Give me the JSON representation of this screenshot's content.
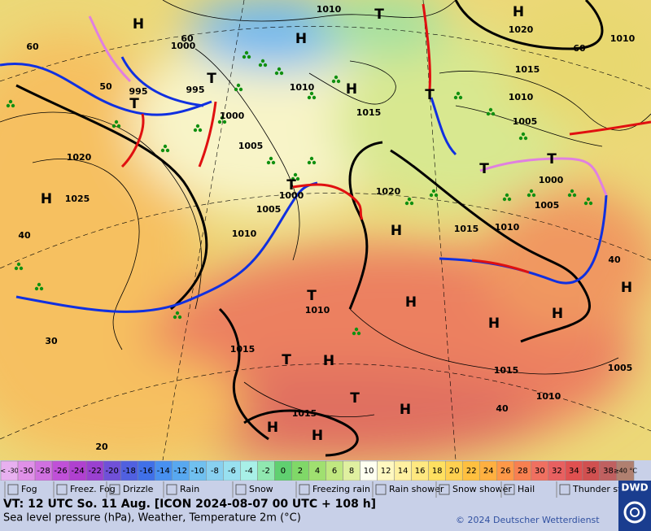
{
  "map": {
    "pressure_labels": [
      "1010",
      "1020",
      "1010",
      "1000",
      "60",
      "60",
      "60",
      "1015",
      "995",
      "995",
      "1010",
      "1015",
      "1010",
      "1000",
      "1005",
      "1005",
      "1020",
      "1025",
      "1000",
      "1020",
      "1000",
      "1005",
      "1005",
      "1015",
      "1010",
      "1010",
      "40",
      "40",
      "1010",
      "30",
      "1015",
      "1015",
      "1005",
      "1010",
      "1015",
      "40",
      "20",
      "50"
    ],
    "systems": [
      "H",
      "H",
      "H",
      "T",
      "H",
      "T",
      "T",
      "T",
      "T",
      "T",
      "T",
      "H",
      "H",
      "H",
      "T",
      "H",
      "H",
      "H",
      "T",
      "H",
      "T",
      "H",
      "H",
      "H"
    ]
  },
  "temperature_scale": [
    "< -30",
    "-30",
    "-28",
    "-26",
    "-24",
    "-22",
    "-20",
    "-18",
    "-16",
    "-14",
    "-12",
    "-10",
    "-8",
    "-6",
    "-4",
    "-2",
    "0",
    "2",
    "4",
    "6",
    "8",
    "10",
    "12",
    "14",
    "16",
    "18",
    "20",
    "22",
    "24",
    "26",
    "28",
    "30",
    "32",
    "34",
    "36",
    "38",
    "≥40 °C"
  ],
  "weather_legend": [
    "Fog",
    "Freez. Fog",
    "Drizzle",
    "Rain",
    "Snow",
    "Freezing rain",
    "Rain shower",
    "Snow shower",
    "Hail",
    "Thunder storm"
  ],
  "footer": {
    "valid_time": "VT: 12 UTC So.  11 Aug. [ICON 2024-08-07  00 UTC + 108 h]",
    "description": "Sea level pressure (hPa), Weather, Temperature 2m (°C)",
    "copyright": "© 2024 Deutscher Wetterdienst",
    "logo": "DWD"
  }
}
